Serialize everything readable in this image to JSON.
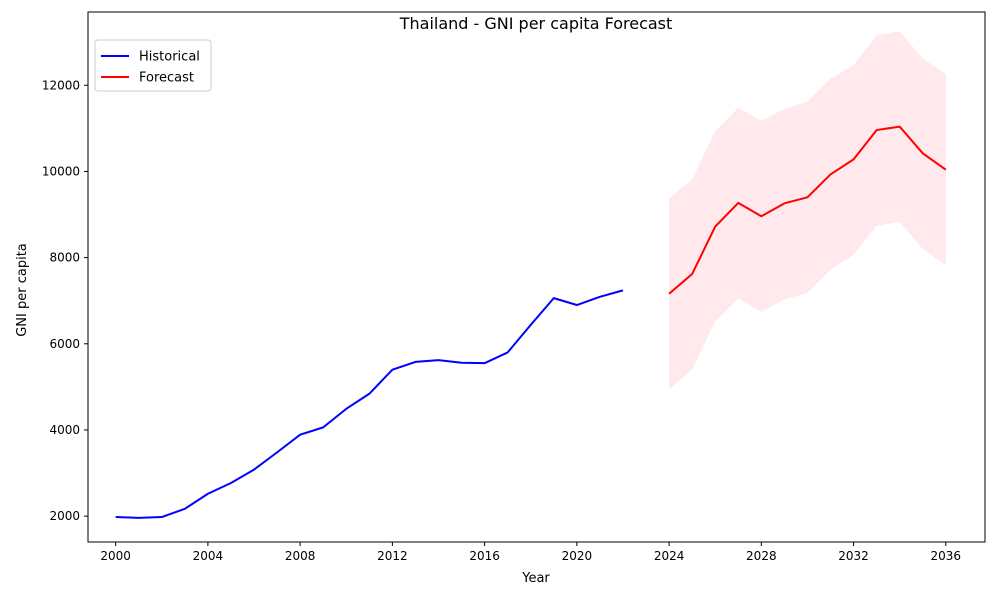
{
  "chart_data": {
    "type": "line",
    "title": "Thailand - GNI per capita Forecast",
    "xlabel": "Year",
    "ylabel": "GNI per capita",
    "xlim": [
      1998.8,
      2037.7
    ],
    "ylim": [
      1400,
      13700
    ],
    "x_ticks": [
      2000,
      2004,
      2008,
      2012,
      2016,
      2020,
      2024,
      2028,
      2032,
      2036
    ],
    "y_ticks": [
      2000,
      4000,
      6000,
      8000,
      10000,
      12000
    ],
    "grid": false,
    "legend_position": "top-left",
    "series": [
      {
        "name": "Historical",
        "color": "#0000ff",
        "x": [
          2000,
          2001,
          2002,
          2003,
          2004,
          2005,
          2006,
          2007,
          2008,
          2009,
          2010,
          2011,
          2012,
          2013,
          2014,
          2015,
          2016,
          2017,
          2018,
          2019,
          2020,
          2021,
          2022
        ],
        "y": [
          1980,
          1960,
          1980,
          2170,
          2520,
          2770,
          3080,
          3480,
          3890,
          4060,
          4490,
          4840,
          5400,
          5580,
          5620,
          5560,
          5550,
          5800,
          6440,
          7060,
          6900,
          7090,
          7240
        ]
      },
      {
        "name": "Forecast",
        "color": "#ff0000",
        "x": [
          2024,
          2025,
          2026,
          2027,
          2028,
          2029,
          2030,
          2031,
          2032,
          2033,
          2034,
          2035,
          2036
        ],
        "y": [
          7160,
          7620,
          8720,
          9270,
          8960,
          9260,
          9400,
          9930,
          10280,
          10960,
          11040,
          10420,
          10040
        ]
      }
    ],
    "confidence_band": {
      "color": "#ffc0cb",
      "x": [
        2024,
        2025,
        2026,
        2027,
        2028,
        2029,
        2030,
        2031,
        2032,
        2033,
        2034,
        2035,
        2036
      ],
      "upper": [
        9370,
        9820,
        10930,
        11480,
        11170,
        11450,
        11620,
        12150,
        12470,
        13160,
        13250,
        12620,
        12260
      ],
      "lower": [
        4940,
        5410,
        6520,
        7060,
        6740,
        7030,
        7180,
        7720,
        8070,
        8740,
        8830,
        8200,
        7830
      ]
    }
  }
}
